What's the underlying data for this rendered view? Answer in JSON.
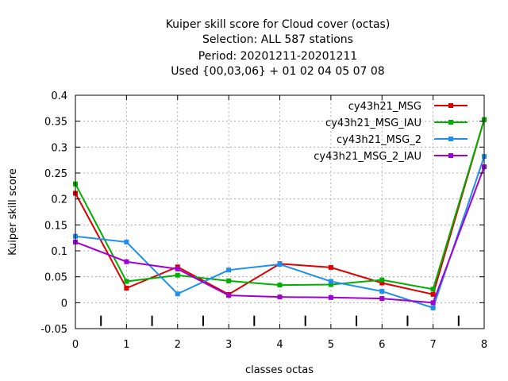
{
  "chart_data": {
    "type": "line",
    "title_lines": [
      "Kuiper skill score  for Cloud cover (octas)",
      "Selection: ALL    587 stations",
      "Period: 20201211-20201211",
      "Used {00,03,06} + 01 02 04 05 07 08"
    ],
    "xlabel": "classes octas",
    "ylabel": "Kuiper skill score",
    "x": [
      0,
      1,
      2,
      3,
      4,
      5,
      6,
      7,
      8
    ],
    "xlim": [
      0,
      8
    ],
    "ylim": [
      -0.05,
      0.4
    ],
    "xticks": [
      "0",
      "1",
      "2",
      "3",
      "4",
      "5",
      "6",
      "7",
      "8"
    ],
    "yticks": [
      "-0.05",
      "0",
      "0.05",
      "0.1",
      "0.15",
      "0.2",
      "0.25",
      "0.3",
      "0.35",
      "0.4"
    ],
    "grid": true,
    "legend_position": "top-right",
    "separator_marks_at": [
      0.5,
      1.5,
      2.5,
      3.5,
      4.5,
      5.5,
      6.5,
      7.5
    ],
    "series": [
      {
        "name": "cy43h21_MSG",
        "color": "#dd0000",
        "values": [
          0.211,
          0.028,
          0.069,
          0.016,
          0.075,
          0.068,
          0.038,
          0.016,
          0.353
        ]
      },
      {
        "name": "cy43h21_MSG_IAU",
        "color": "#00b000",
        "values": [
          0.229,
          0.041,
          0.053,
          0.042,
          0.034,
          0.035,
          0.044,
          0.026,
          0.353
        ]
      },
      {
        "name": "cy43h21_MSG_2",
        "color": "#1e8ef0",
        "values": [
          0.128,
          0.117,
          0.017,
          0.063,
          0.074,
          0.041,
          0.022,
          -0.01,
          0.282
        ]
      },
      {
        "name": "cy43h21_MSG_2_IAU",
        "color": "#a000d8",
        "values": [
          0.117,
          0.079,
          0.065,
          0.014,
          0.011,
          0.01,
          0.008,
          0.0,
          0.262
        ]
      }
    ]
  }
}
